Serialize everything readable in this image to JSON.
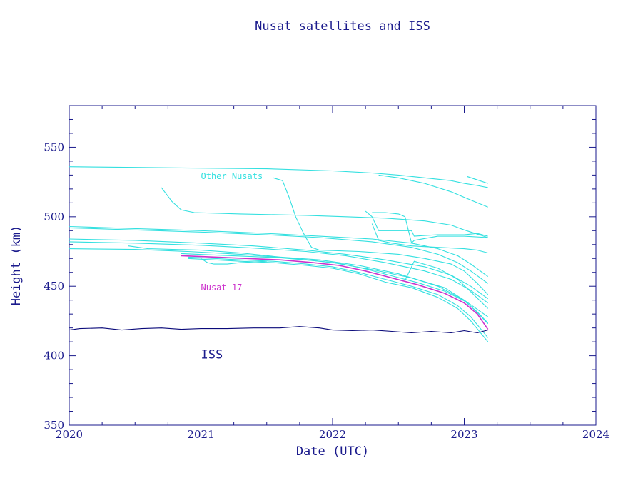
{
  "chart_data": {
    "type": "line",
    "title": "Nusat satellites and ISS",
    "xlabel": "Date (UTC)",
    "ylabel": "Height (km)",
    "xlim": [
      2020,
      2024
    ],
    "ylim": [
      350,
      580
    ],
    "x_ticks": [
      "2020",
      "2021",
      "2022",
      "2023",
      "2024"
    ],
    "y_ticks": [
      "350",
      "400",
      "450",
      "500",
      "550"
    ],
    "grid": false,
    "colors": {
      "axes": "#1a1a8c",
      "iss": "#0a0a7a",
      "others": "#33e0e0",
      "nusat17": "#cc33cc"
    },
    "annotations": [
      {
        "text": "Other Nusats",
        "x": 2021.0,
        "y": 527,
        "color": "#33e0e0",
        "size": "small"
      },
      {
        "text": "Nusat-17",
        "x": 2021.0,
        "y": 447,
        "color": "#cc33cc",
        "size": "small"
      },
      {
        "text": "ISS",
        "x": 2021.0,
        "y": 398,
        "color": "#1a1a8c",
        "size": "big"
      }
    ],
    "series": [
      {
        "role": "iss",
        "x": [
          2020.0,
          2020.08,
          2020.25,
          2020.4,
          2020.55,
          2020.7,
          2020.85,
          2021.0,
          2021.2,
          2021.4,
          2021.6,
          2021.75,
          2021.9,
          2022.0,
          2022.15,
          2022.3,
          2022.45,
          2022.6,
          2022.75,
          2022.9,
          2023.0,
          2023.1,
          2023.18
        ],
        "y": [
          418.5,
          419.5,
          420,
          418.5,
          419.5,
          420,
          419,
          419.5,
          419.5,
          420,
          420,
          421,
          420,
          418.5,
          418,
          418.5,
          417.5,
          416.5,
          417.5,
          416.5,
          418,
          416.5,
          418.5
        ]
      },
      {
        "role": "other",
        "x": [
          2020.0,
          2020.5,
          2021.0,
          2021.5,
          2022.0,
          2022.3,
          2022.5,
          2022.7,
          2022.9,
          2023.0,
          2023.1,
          2023.18
        ],
        "y": [
          536,
          535.5,
          535,
          534.5,
          533,
          531.5,
          530,
          528,
          526,
          524,
          522.5,
          521
        ]
      },
      {
        "role": "other",
        "x": [
          2022.35,
          2022.5,
          2022.7,
          2022.9,
          2023.0,
          2023.1,
          2023.18
        ],
        "y": [
          530,
          528,
          524,
          518,
          514,
          510,
          507
        ]
      },
      {
        "role": "other",
        "x": [
          2023.02,
          2023.1,
          2023.18
        ],
        "y": [
          529,
          526.5,
          524
        ]
      },
      {
        "role": "other",
        "x": [
          2020.7,
          2020.78,
          2020.85,
          2020.95,
          2021.3,
          2021.8,
          2022.1,
          2022.4,
          2022.7,
          2022.9,
          2023.0,
          2023.1,
          2023.18
        ],
        "y": [
          521,
          511,
          505,
          503,
          502,
          501,
          500,
          499,
          497,
          494,
          490.5,
          487.5,
          485
        ]
      },
      {
        "role": "other",
        "x": [
          2021.55,
          2021.62,
          2021.67,
          2021.72,
          2021.78,
          2021.84,
          2021.9,
          2022.2,
          2022.5,
          2022.7,
          2022.9,
          2023.0,
          2023.1,
          2023.18
        ],
        "y": [
          528,
          526,
          514,
          500,
          488,
          478,
          476,
          475,
          473,
          470,
          466,
          461,
          452,
          444
        ]
      },
      {
        "role": "other",
        "x": [
          2020.0,
          2020.5,
          2021.0,
          2021.5,
          2021.9,
          2022.3,
          2022.6,
          2022.8,
          2022.95,
          2023.05,
          2023.18
        ],
        "y": [
          493,
          491.5,
          490,
          488,
          486,
          484,
          481,
          477,
          472,
          466,
          457
        ]
      },
      {
        "role": "other",
        "x": [
          2020.0,
          2020.5,
          2021.0,
          2021.5,
          2021.9,
          2022.3,
          2022.6,
          2022.8,
          2022.95,
          2023.05,
          2023.18
        ],
        "y": [
          492,
          490.5,
          489,
          487,
          485,
          482,
          478,
          473,
          467,
          461,
          452
        ]
      },
      {
        "role": "other",
        "x": [
          2020.0,
          2020.5,
          2021.0,
          2021.4,
          2021.8,
          2022.1,
          2022.4,
          2022.7,
          2022.9,
          2023.05,
          2023.18
        ],
        "y": [
          484,
          483,
          481,
          479,
          476,
          473,
          469,
          464,
          458,
          450,
          441
        ]
      },
      {
        "role": "other",
        "x": [
          2020.0,
          2020.5,
          2021.0,
          2021.4,
          2021.8,
          2022.1,
          2022.4,
          2022.7,
          2022.9,
          2023.05,
          2023.18
        ],
        "y": [
          482,
          481,
          479.5,
          477.5,
          475,
          472,
          467,
          461,
          455,
          447,
          438
        ]
      },
      {
        "role": "other",
        "x": [
          2020.0,
          2020.5,
          2020.9,
          2021.3,
          2021.7,
          2022.0,
          2022.3,
          2022.6,
          2022.85,
          2023.0,
          2023.18
        ],
        "y": [
          477,
          476.5,
          475,
          473,
          470,
          467,
          462,
          456,
          449,
          440,
          428
        ]
      },
      {
        "role": "other",
        "x": [
          2022.25,
          2022.3,
          2022.35,
          2022.45,
          2022.55,
          2022.6,
          2022.62,
          2022.7,
          2022.8,
          2022.9,
          2023.0,
          2023.1,
          2023.18
        ],
        "y": [
          504,
          500,
          490,
          490,
          490,
          490,
          486,
          486.5,
          487,
          487,
          487,
          488,
          486
        ]
      },
      {
        "role": "other",
        "x": [
          2022.3,
          2022.4,
          2022.5,
          2022.55,
          2022.6,
          2022.62,
          2022.8,
          2023.0,
          2023.18
        ],
        "y": [
          503,
          503,
          502,
          500,
          481,
          483,
          486,
          486,
          485
        ]
      },
      {
        "role": "other",
        "x": [
          2022.3,
          2022.35,
          2022.45,
          2022.6,
          2022.8,
          2023.0,
          2023.1,
          2023.18
        ],
        "y": [
          495,
          483,
          481,
          479,
          478,
          477,
          476,
          474
        ]
      },
      {
        "role": "other",
        "x": [
          2022.55,
          2022.58,
          2022.6,
          2022.62,
          2022.8,
          2022.95,
          2023.05,
          2023.18
        ],
        "y": [
          454,
          460,
          464,
          468,
          463,
          455,
          446,
          434
        ]
      },
      {
        "role": "other",
        "x": [
          2020.45,
          2020.6,
          2021.0,
          2021.3,
          2021.6,
          2021.9,
          2022.2,
          2022.5,
          2022.8,
          2023.0,
          2023.1,
          2023.18
        ],
        "y": [
          479,
          477,
          476,
          474,
          471,
          469,
          465,
          459,
          450,
          440,
          431,
          423
        ]
      },
      {
        "role": "other",
        "x": [
          2020.9,
          2021.1,
          2021.3,
          2021.55,
          2021.8,
          2022.0,
          2022.2,
          2022.4,
          2022.6,
          2022.8,
          2022.95,
          2023.05,
          2023.18
        ],
        "y": [
          471,
          470,
          469,
          468,
          466,
          464,
          460,
          455,
          450,
          444,
          436,
          428,
          413
        ]
      },
      {
        "role": "other",
        "x": [
          2020.9,
          2021.1,
          2021.3,
          2021.55,
          2021.8,
          2022.0,
          2022.2,
          2022.4,
          2022.6,
          2022.8,
          2022.95,
          2023.05,
          2023.18
        ],
        "y": [
          470,
          469,
          468,
          467,
          465,
          463,
          459,
          453,
          449,
          442,
          434,
          425,
          410
        ]
      },
      {
        "role": "other",
        "x": [
          2021.0,
          2021.05,
          2021.1,
          2021.2,
          2021.3,
          2021.5
        ],
        "y": [
          470,
          467,
          466,
          466,
          467,
          468
        ]
      },
      {
        "role": "other",
        "x": [
          2020.85,
          2021.1,
          2021.35,
          2021.6,
          2021.85,
          2022.05,
          2022.25,
          2022.45,
          2022.65,
          2022.85,
          2023.0,
          2023.1,
          2023.18
        ],
        "y": [
          473.5,
          472.5,
          471.5,
          470.5,
          468.5,
          466.5,
          462.5,
          457.5,
          452.5,
          446.5,
          439.5,
          431.5,
          423.5
        ]
      },
      {
        "role": "nusat17",
        "x": [
          2020.85,
          2021.1,
          2021.35,
          2021.6,
          2021.85,
          2022.05,
          2022.25,
          2022.45,
          2022.65,
          2022.85,
          2023.0,
          2023.1,
          2023.18
        ],
        "y": [
          472,
          471,
          470,
          469,
          467,
          465,
          461,
          456,
          451,
          445,
          438,
          430,
          419
        ]
      }
    ]
  }
}
